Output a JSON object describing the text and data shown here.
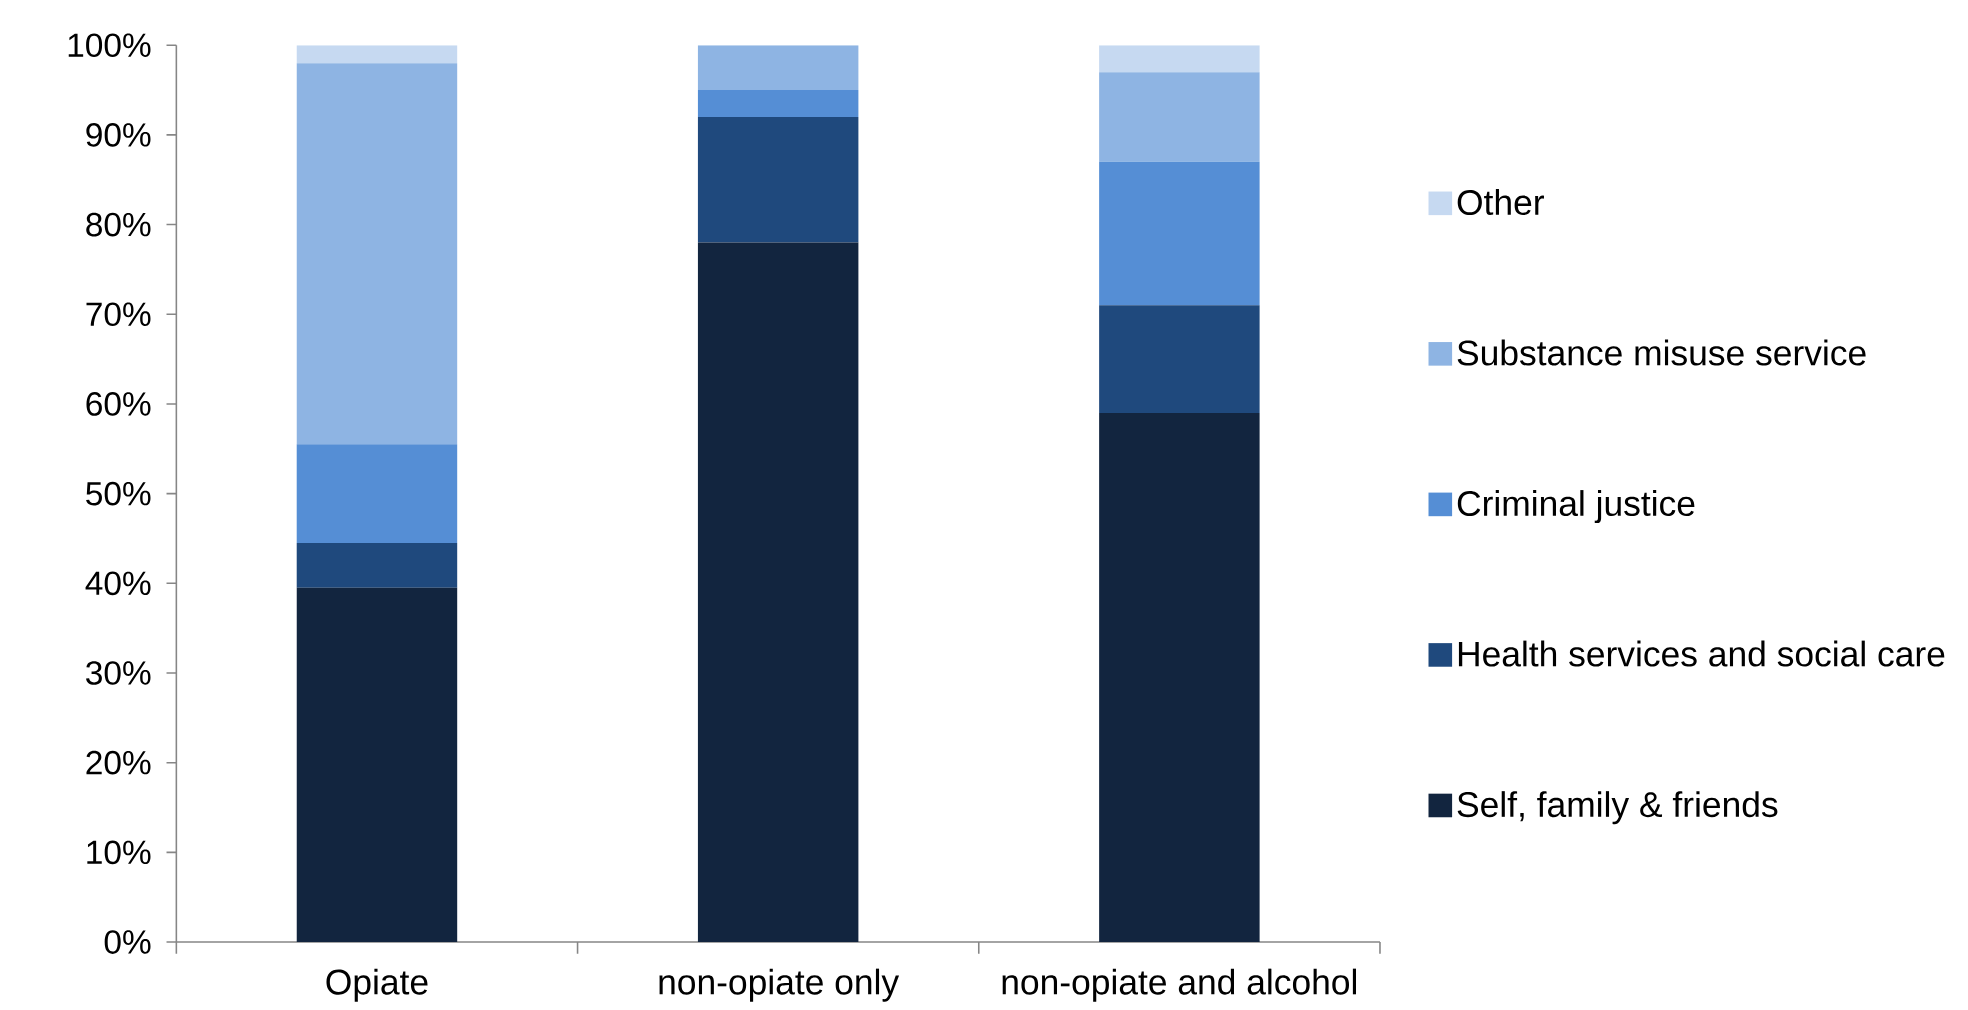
{
  "chart_data": {
    "type": "bar",
    "stacked": true,
    "categories": [
      "Opiate",
      "non-opiate only",
      "non-opiate and alcohol"
    ],
    "series": [
      {
        "name": "Self, family & friends",
        "color": "#12253f",
        "values": [
          39.5,
          78,
          59
        ]
      },
      {
        "name": "Health services and social care",
        "color": "#1f497d",
        "values": [
          5,
          14,
          12
        ]
      },
      {
        "name": "Criminal justice",
        "color": "#558ed5",
        "values": [
          11,
          3,
          16
        ]
      },
      {
        "name": "Substance misuse service",
        "color": "#8eb4e3",
        "values": [
          42.5,
          5,
          10
        ]
      },
      {
        "name": "Other",
        "color": "#c6d9f1",
        "values": [
          2,
          0,
          3
        ]
      }
    ],
    "ylim": [
      0,
      100
    ],
    "yticks": [
      {
        "value": 0,
        "label": "0%"
      },
      {
        "value": 10,
        "label": "10%"
      },
      {
        "value": 20,
        "label": "20%"
      },
      {
        "value": 30,
        "label": "30%"
      },
      {
        "value": 40,
        "label": "40%"
      },
      {
        "value": 50,
        "label": "50%"
      },
      {
        "value": 60,
        "label": "60%"
      },
      {
        "value": 70,
        "label": "70%"
      },
      {
        "value": 80,
        "label": "80%"
      },
      {
        "value": 90,
        "label": "90%"
      },
      {
        "value": 100,
        "label": "100%"
      }
    ],
    "legend": "right"
  }
}
